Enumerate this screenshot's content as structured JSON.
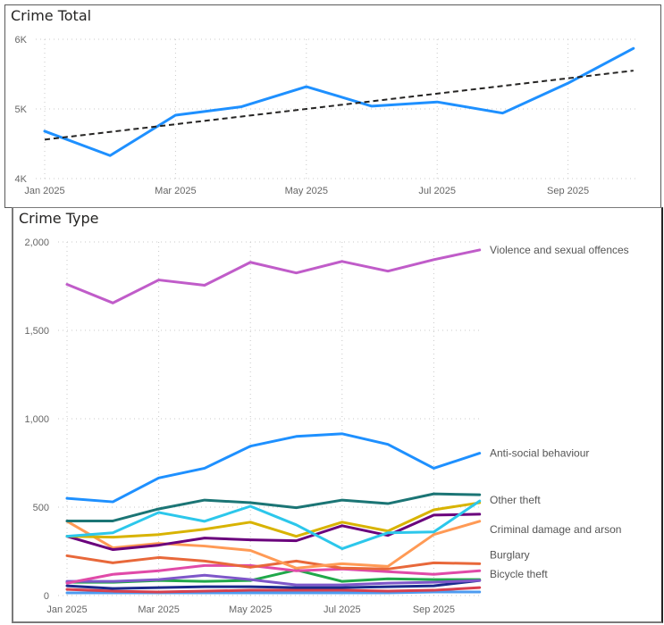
{
  "chart_data": [
    {
      "id": "crime-total",
      "type": "line",
      "title": "Crime Total",
      "xlabel": "",
      "ylabel": "",
      "x": [
        "Jan 2025",
        "Feb 2025",
        "Mar 2025",
        "Apr 2025",
        "May 2025",
        "Jun 2025",
        "Jul 2025",
        "Aug 2025",
        "Sep 2025",
        "Oct 2025"
      ],
      "x_tick_labels": [
        "Jan 2025",
        "Mar 2025",
        "May 2025",
        "Jul 2025",
        "Sep 2025"
      ],
      "y_tick_labels": [
        "4K",
        "5K",
        "6K"
      ],
      "y_ticks": [
        4000,
        5000,
        6000
      ],
      "ylim": [
        4000,
        6000
      ],
      "grid": true,
      "series": [
        {
          "name": "Crime Total",
          "color": "#1E90FF",
          "values": [
            4680,
            4330,
            4910,
            5030,
            5320,
            5040,
            5100,
            4940,
            5370,
            5870
          ]
        }
      ],
      "trendline": {
        "name": "Trend",
        "color": "#252423",
        "style": "dashed",
        "start": 4560,
        "end": 5550
      }
    },
    {
      "id": "crime-type",
      "type": "line",
      "title": "Crime Type",
      "xlabel": "",
      "ylabel": "",
      "x": [
        "Jan 2025",
        "Feb 2025",
        "Mar 2025",
        "Apr 2025",
        "May 2025",
        "Jun 2025",
        "Jul 2025",
        "Aug 2025",
        "Sep 2025",
        "Oct 2025"
      ],
      "x_tick_labels": [
        "Jan 2025",
        "Mar 2025",
        "May 2025",
        "Jul 2025",
        "Sep 2025"
      ],
      "y_tick_labels": [
        "0",
        "500",
        "1,000",
        "1,500",
        "2,000"
      ],
      "y_ticks": [
        0,
        500,
        1000,
        1500,
        2000
      ],
      "ylim": [
        0,
        2000
      ],
      "grid": true,
      "series": [
        {
          "name": "Violence and sexual offences",
          "labeled": true,
          "color": "#C05CC9",
          "values": [
            1760,
            1655,
            1785,
            1755,
            1885,
            1825,
            1890,
            1835,
            1900,
            1955
          ]
        },
        {
          "name": "Anti-social behaviour",
          "labeled": true,
          "color": "#1E90FF",
          "values": [
            550,
            530,
            665,
            720,
            845,
            900,
            915,
            855,
            720,
            805
          ]
        },
        {
          "name": "Other theft",
          "labeled": true,
          "color": "#1B7575",
          "values": [
            422,
            422,
            490,
            540,
            525,
            497,
            540,
            520,
            575,
            570
          ]
        },
        {
          "name": "Series 4",
          "labeled": false,
          "color": "#2CC7EB",
          "values": [
            335,
            355,
            470,
            420,
            505,
            400,
            265,
            355,
            360,
            535
          ]
        },
        {
          "name": "Series 5",
          "labeled": false,
          "color": "#D8B300",
          "values": [
            335,
            330,
            345,
            375,
            415,
            335,
            415,
            365,
            485,
            525
          ]
        },
        {
          "name": "Criminal damage and arson",
          "labeled": true,
          "color": "#6A007C",
          "values": [
            335,
            260,
            285,
            325,
            315,
            310,
            395,
            340,
            455,
            460
          ]
        },
        {
          "name": "Series 7",
          "labeled": false,
          "color": "#FF9A55",
          "values": [
            420,
            270,
            295,
            280,
            255,
            155,
            180,
            165,
            345,
            420
          ]
        },
        {
          "name": "Burglary",
          "labeled": true,
          "color": "#E8683A",
          "values": [
            225,
            185,
            215,
            195,
            160,
            195,
            155,
            150,
            185,
            180
          ]
        },
        {
          "name": "Series 9",
          "labeled": false,
          "color": "#E04AA8",
          "values": [
            70,
            120,
            140,
            170,
            170,
            140,
            150,
            135,
            120,
            140
          ]
        },
        {
          "name": "Series 10",
          "labeled": false,
          "color": "#7E57C9",
          "values": [
            80,
            80,
            90,
            115,
            90,
            60,
            60,
            70,
            75,
            85
          ]
        },
        {
          "name": "Bicycle theft",
          "labeled": true,
          "color": "#20A84A",
          "values": [
            75,
            75,
            85,
            80,
            85,
            145,
            80,
            95,
            90,
            90
          ]
        },
        {
          "name": "Series 12",
          "labeled": false,
          "color": "#1A2A8C",
          "values": [
            55,
            40,
            45,
            50,
            50,
            45,
            45,
            50,
            55,
            85
          ]
        },
        {
          "name": "Series 13",
          "labeled": false,
          "color": "#D9414F",
          "values": [
            35,
            25,
            20,
            25,
            30,
            30,
            30,
            25,
            30,
            45
          ]
        },
        {
          "name": "Series 14",
          "labeled": false,
          "color": "#4D9BF0",
          "values": [
            15,
            15,
            15,
            15,
            15,
            15,
            15,
            15,
            20,
            20
          ]
        }
      ],
      "end_labels": [
        {
          "series": "Violence and sexual offences",
          "text": "Violence and sexual offences"
        },
        {
          "series": "Anti-social behaviour",
          "text": "Anti-social behaviour"
        },
        {
          "series": "Other theft",
          "text": "Other theft"
        },
        {
          "series": "Criminal damage and arson",
          "text": "Criminal damage and arson"
        },
        {
          "series": "Burglary",
          "text": "Burglary"
        },
        {
          "series": "Bicycle theft",
          "text": "Bicycle theft"
        }
      ]
    }
  ]
}
